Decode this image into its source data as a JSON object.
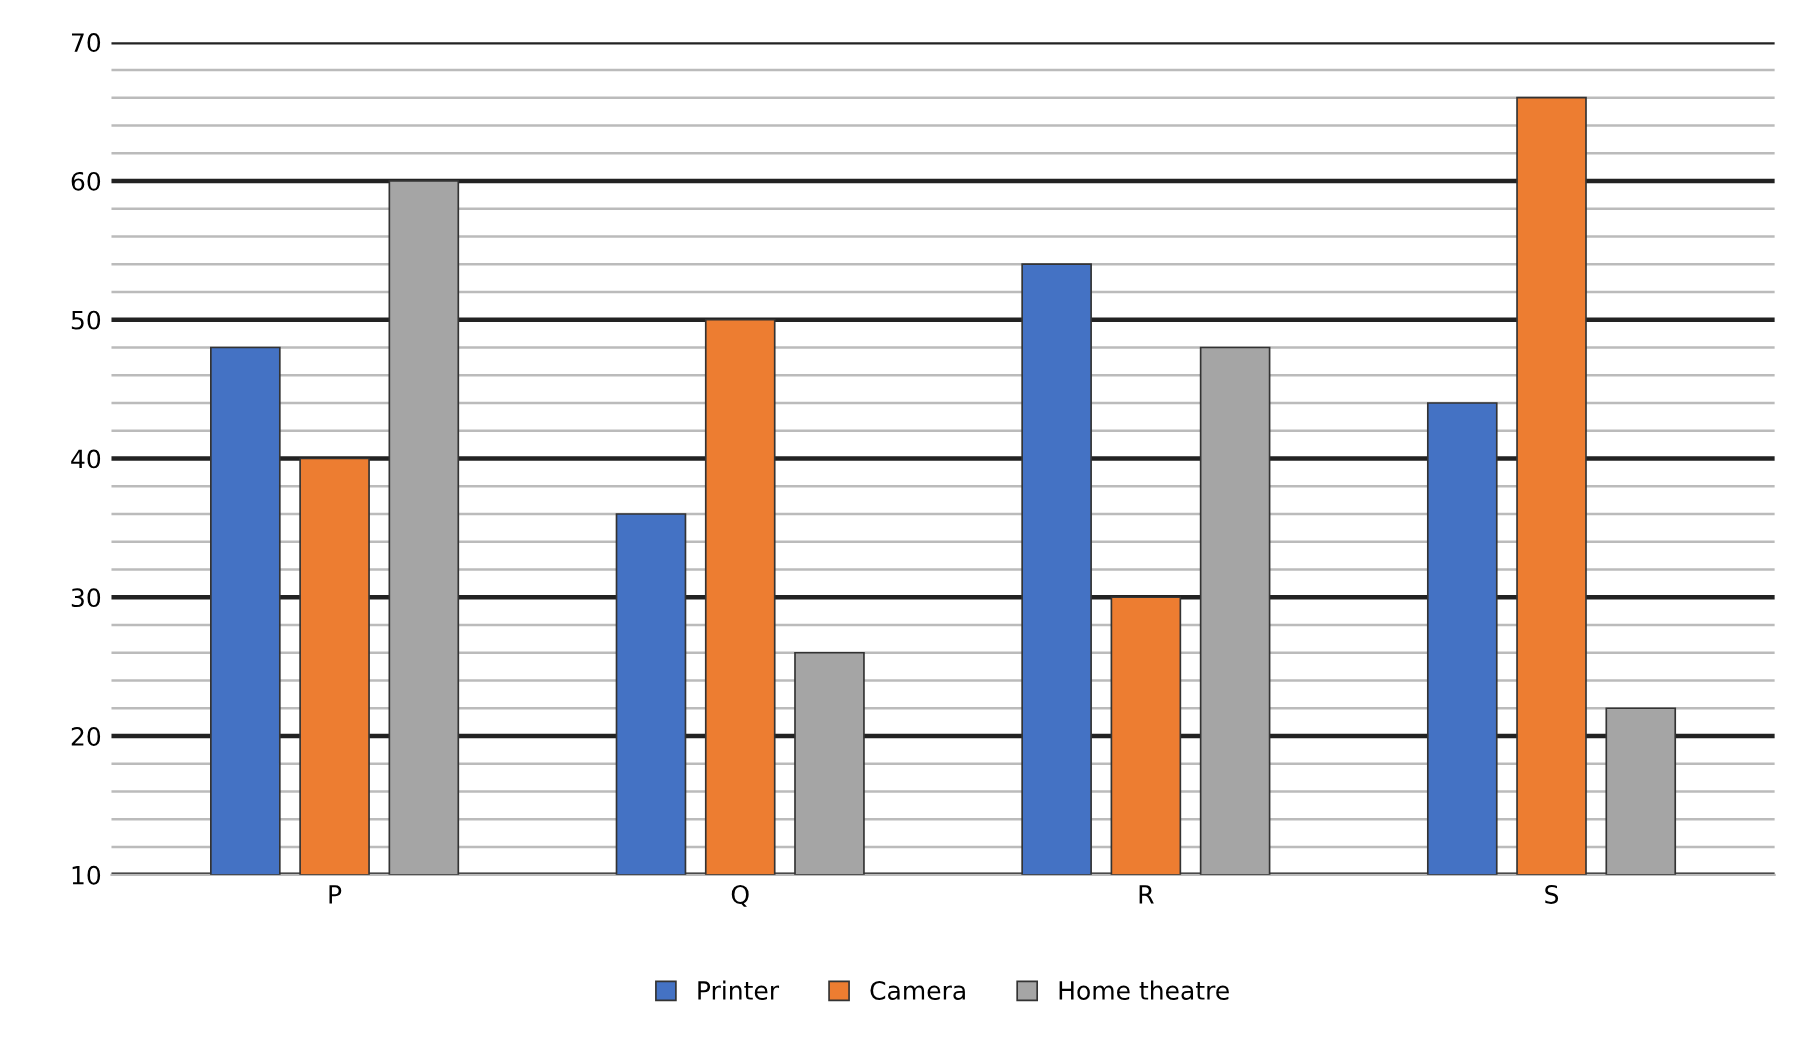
{
  "chart_data": {
    "type": "bar",
    "categories": [
      "P",
      "Q",
      "R",
      "S"
    ],
    "series": [
      {
        "name": "Printer",
        "color": "#4472c4",
        "values": [
          48,
          36,
          54,
          44
        ]
      },
      {
        "name": "Camera",
        "color": "#ed7d31",
        "values": [
          40,
          50,
          30,
          66
        ]
      },
      {
        "name": "Home theatre",
        "color": "#a5a5a5",
        "values": [
          60,
          26,
          48,
          22
        ]
      }
    ],
    "ylim": [
      10,
      70
    ],
    "yticks": [
      10,
      {
        "value": 12,
        "label": null
      },
      {
        "value": 14,
        "label": null
      },
      {
        "value": 16,
        "label": null
      },
      {
        "value": 18,
        "label": null
      },
      20,
      {
        "value": 22,
        "label": null
      },
      {
        "value": 24,
        "label": null
      },
      {
        "value": 26,
        "label": null
      },
      {
        "value": 28,
        "label": null
      },
      30,
      {
        "value": 32,
        "label": null
      },
      {
        "value": 34,
        "label": null
      },
      {
        "value": 36,
        "label": null
      },
      {
        "value": 38,
        "label": null
      },
      40,
      {
        "value": 42,
        "label": null
      },
      {
        "value": 44,
        "label": null
      },
      {
        "value": 46,
        "label": null
      },
      {
        "value": 48,
        "label": null
      },
      50,
      {
        "value": 52,
        "label": null
      },
      {
        "value": 54,
        "label": null
      },
      {
        "value": 56,
        "label": null
      },
      {
        "value": 58,
        "label": null
      },
      60,
      {
        "value": 62,
        "label": null
      },
      {
        "value": 64,
        "label": null
      },
      {
        "value": 66,
        "label": null
      },
      {
        "value": 68,
        "label": null
      },
      70
    ],
    "grid": "y",
    "legend": "bottom"
  }
}
